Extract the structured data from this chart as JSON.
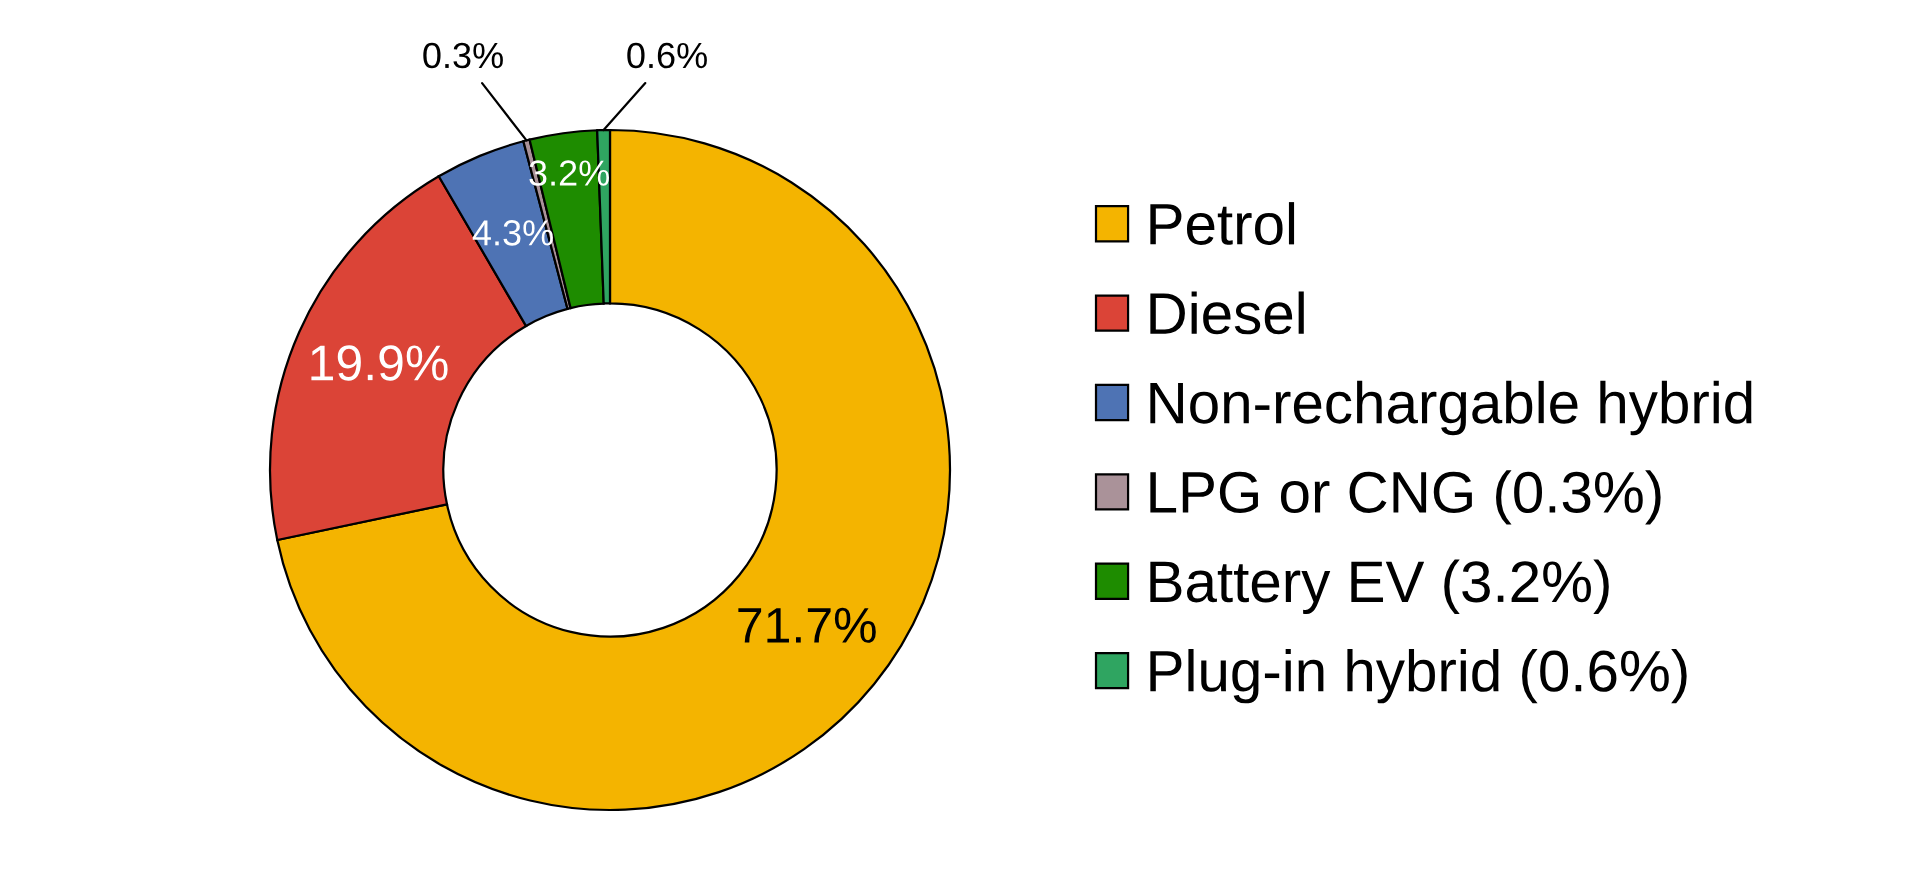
{
  "chart_data": {
    "type": "donut",
    "categories": [
      "Petrol",
      "Diesel",
      "Non-rechargable hybrid",
      "LPG or CNG (0.3%)",
      "Battery EV (3.2%)",
      "Plug-in hybrid (0.6%)"
    ],
    "values": [
      71.7,
      19.9,
      4.3,
      0.3,
      3.2,
      0.6
    ],
    "colors": [
      "#f4b400",
      "#db4437",
      "#4e73b4",
      "#aa9299",
      "#1e8c00",
      "#2fa561"
    ],
    "value_labels": [
      "71.7%",
      "19.9%",
      "4.3%",
      "0.3%",
      "3.2%",
      "0.6%"
    ],
    "legend": "right"
  }
}
